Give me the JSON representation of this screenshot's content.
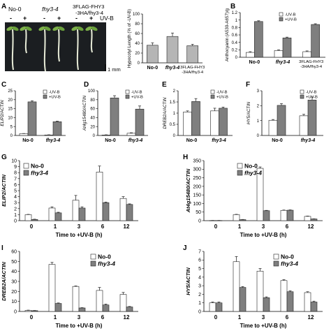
{
  "colors": {
    "white_bar": "#ffffff",
    "grey_bar": "#7f7f7f",
    "light_bar": "#b5b5b5",
    "edge": "#222222",
    "error": "#333333"
  },
  "panel_a": {
    "letter": "A",
    "genotypes": [
      "No-0",
      "fhy3-4",
      "3FLAG-FHY3",
      "-3HA/fhy3-4"
    ],
    "uvb_label": "UV-B",
    "minus": "-",
    "plus": "+",
    "scale_bar": "1 mm"
  },
  "chart_data": [
    {
      "id": "A_bar",
      "type": "bar",
      "title": "",
      "xlabel": "",
      "ylabel": "Hypocotyl Length (% of -UV-B)",
      "ylim": [
        0,
        100
      ],
      "yticks": [
        0,
        20,
        40,
        60,
        80,
        100
      ],
      "categories": [
        "No-0",
        "fhy3-4",
        "3FLAG-FHY3 -3HA/fhy3-4"
      ],
      "series": [
        {
          "values": [
            36,
            54,
            35
          ],
          "errors": [
            5,
            7,
            3
          ]
        }
      ]
    },
    {
      "id": "B",
      "letter": "B",
      "type": "bar",
      "title": "",
      "xlabel": "",
      "ylabel": "Anthocyanin (A530-A657)/g",
      "ylim": [
        0,
        1.2
      ],
      "yticks": [
        0,
        0.2,
        0.4,
        0.6,
        0.8,
        1.0,
        1.2
      ],
      "categories": [
        "No-0",
        "fhy3-4",
        "3FLAG-FHY3 -3HA/fhy3-4"
      ],
      "legend": [
        "-UV-B",
        "+UV-B"
      ],
      "legend_position": "top-right",
      "series": [
        {
          "name": "-UV-B",
          "values": [
            0.13,
            0.18,
            0.15
          ],
          "errors": [
            0.02,
            0.02,
            0.02
          ]
        },
        {
          "name": "+UV-B",
          "values": [
            0.96,
            0.52,
            0.88
          ],
          "errors": [
            0.02,
            0.02,
            0.02
          ]
        }
      ]
    },
    {
      "id": "C",
      "letter": "C",
      "type": "bar",
      "title": "",
      "xlabel": "",
      "ylabel": "ELIP2/ACTIN",
      "ylim": [
        0,
        25
      ],
      "yticks": [
        0,
        5,
        10,
        15,
        20,
        25
      ],
      "categories": [
        "No-0",
        "fhy3-4"
      ],
      "legend": [
        "-UV-B",
        "+UV-B"
      ],
      "legend_position": "top-right",
      "series": [
        {
          "name": "-UV-B",
          "values": [
            1,
            0.3
          ],
          "errors": [
            0.1,
            0.1
          ]
        },
        {
          "name": "+UV-B",
          "values": [
            18.8,
            7.7
          ],
          "errors": [
            0.6,
            0.3
          ]
        }
      ]
    },
    {
      "id": "D",
      "letter": "D",
      "type": "bar",
      "title": "",
      "xlabel": "",
      "ylabel": "At4g15480/ACTIN",
      "ylim": [
        0,
        100
      ],
      "yticks": [
        0,
        20,
        40,
        60,
        80,
        100
      ],
      "categories": [
        "No-0",
        "fhy3-4"
      ],
      "legend": [
        "-UV-B",
        "+UV-B"
      ],
      "legend_position": "top-right",
      "series": [
        {
          "name": "-UV-B",
          "values": [
            1,
            5
          ],
          "errors": [
            0.5,
            1
          ]
        },
        {
          "name": "+UV-B",
          "values": [
            84,
            59
          ],
          "errors": [
            5,
            7
          ]
        }
      ]
    },
    {
      "id": "E",
      "letter": "E",
      "type": "bar",
      "title": "",
      "xlabel": "",
      "ylabel": "DREB2A/ACTIN",
      "ylim": [
        0,
        2
      ],
      "yticks": [
        0,
        0.5,
        1,
        1.5,
        2
      ],
      "categories": [
        "No-0",
        "fhy3-4"
      ],
      "legend": [
        "-UV-B",
        "+UV-B"
      ],
      "legend_position": "top-right",
      "series": [
        {
          "name": "-UV-B",
          "values": [
            1.05,
            1.1
          ],
          "errors": [
            0.05,
            0.12
          ]
        },
        {
          "name": "+UV-B",
          "values": [
            1.52,
            1.22
          ],
          "errors": [
            0.13,
            0.05
          ]
        }
      ]
    },
    {
      "id": "F",
      "letter": "F",
      "type": "bar",
      "title": "",
      "xlabel": "",
      "ylabel": "HY5/ACTIN",
      "ylim": [
        0,
        3
      ],
      "yticks": [
        0,
        1,
        2,
        3
      ],
      "categories": [
        "No-0",
        "fhy3-4"
      ],
      "legend": [
        "-UV-B",
        "+UV-B"
      ],
      "legend_position": "top-right",
      "series": [
        {
          "name": "-UV-B",
          "values": [
            1.02,
            1.32
          ],
          "errors": [
            0.05,
            0.1
          ]
        },
        {
          "name": "+UV-B",
          "values": [
            2.02,
            2.38
          ],
          "errors": [
            0.12,
            0.2
          ]
        }
      ]
    },
    {
      "id": "G",
      "letter": "G",
      "type": "bar",
      "title": "",
      "xlabel": "Time to +UV-B (h)",
      "ylabel": "ELIP2/ACTIN",
      "ylim": [
        0,
        10
      ],
      "yticks": [
        0,
        1,
        2,
        3,
        4,
        5,
        6,
        7,
        8,
        9,
        10
      ],
      "categories": [
        "0",
        "1",
        "3",
        "6",
        "12"
      ],
      "legend": [
        "No-0",
        "fhy3-4"
      ],
      "legend_position": "top-left",
      "series": [
        {
          "name": "No-0",
          "values": [
            1,
            2.1,
            3.4,
            8.1,
            3.7
          ],
          "errors": [
            0.05,
            0.2,
            0.8,
            1.0,
            0.3
          ]
        },
        {
          "name": "fhy3-4",
          "values": [
            0.2,
            1.3,
            2.1,
            3.0,
            2.7
          ],
          "errors": [
            0.05,
            0.1,
            0.2,
            0.1,
            0.1
          ]
        }
      ]
    },
    {
      "id": "H",
      "letter": "H",
      "type": "bar",
      "title": "",
      "xlabel": "Time to +UV-B (h)",
      "ylabel": "At4g15480/ACTIN",
      "ylim": [
        0,
        350
      ],
      "yticks": [
        0,
        50,
        100,
        150,
        200,
        250,
        300,
        350
      ],
      "categories": [
        "0",
        "1",
        "3",
        "6",
        "12"
      ],
      "legend": [
        "No-0",
        "fhy3-4"
      ],
      "legend_position": "top-right",
      "series": [
        {
          "name": "No-0",
          "values": [
            1,
            35,
            305,
            60,
            25
          ],
          "errors": [
            0.5,
            2,
            8,
            2,
            2
          ]
        },
        {
          "name": "fhy3-4",
          "values": [
            1,
            6,
            58,
            61,
            10
          ],
          "errors": [
            0.5,
            1,
            2,
            2,
            1
          ]
        }
      ]
    },
    {
      "id": "I",
      "letter": "I",
      "type": "bar",
      "title": "",
      "xlabel": "Time to +UV-B (h)",
      "ylabel": "DREB2A/ACTIN",
      "ylim": [
        0,
        60
      ],
      "yticks": [
        0,
        10,
        20,
        30,
        40,
        50,
        60
      ],
      "categories": [
        "0",
        "1",
        "3",
        "6",
        "12"
      ],
      "legend": [
        "No-0",
        "fhy3-4"
      ],
      "legend_position": "top-right",
      "series": [
        {
          "name": "No-0",
          "values": [
            1,
            47,
            25,
            21,
            17
          ],
          "errors": [
            0.3,
            2,
            0.5,
            3,
            2
          ]
        },
        {
          "name": "fhy3-4",
          "values": [
            0.8,
            8,
            3.5,
            6.5,
            4.5
          ],
          "errors": [
            0.2,
            0.5,
            0.3,
            0.8,
            0.5
          ]
        }
      ]
    },
    {
      "id": "J",
      "letter": "J",
      "type": "bar",
      "title": "",
      "xlabel": "Time to +UV-B (h)",
      "ylabel": "HY5/ACTIN",
      "ylim": [
        0,
        7
      ],
      "yticks": [
        0,
        1,
        2,
        3,
        4,
        5,
        6,
        7
      ],
      "categories": [
        "0",
        "1",
        "3",
        "6",
        "12"
      ],
      "legend": [
        "No-0",
        "fhy3-4"
      ],
      "legend_position": "top-right",
      "series": [
        {
          "name": "No-0",
          "values": [
            1,
            5.8,
            4.7,
            3.6,
            2.2
          ],
          "errors": [
            0.1,
            0.6,
            0.3,
            0.1,
            0.1
          ]
        },
        {
          "name": "fhy3-4",
          "values": [
            1,
            2.8,
            1.6,
            2.3,
            1.1
          ],
          "errors": [
            0.1,
            0.1,
            0.1,
            0.1,
            0.1
          ]
        }
      ]
    }
  ]
}
